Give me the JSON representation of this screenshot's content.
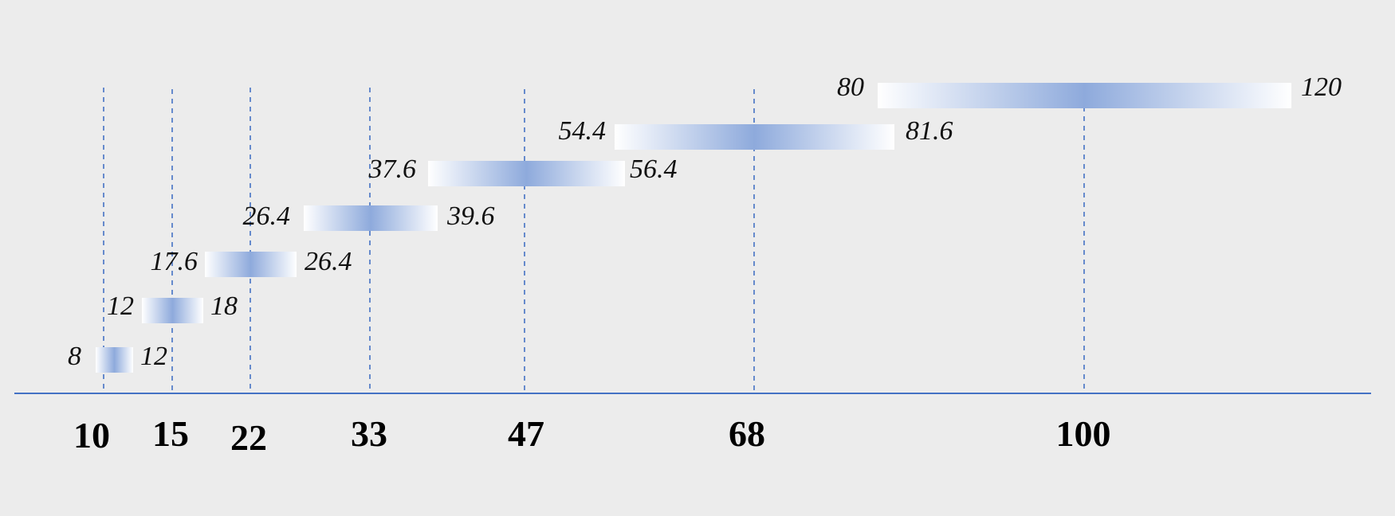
{
  "chart_data": {
    "type": "range-bar",
    "nominal_values": [
      "10",
      "15",
      "22",
      "33",
      "47",
      "68",
      "100"
    ],
    "ranges": [
      {
        "nominal": "10",
        "low": "8",
        "high": "12"
      },
      {
        "nominal": "15",
        "low": "12",
        "high": "18"
      },
      {
        "nominal": "22",
        "low": "17.6",
        "high": "26.4"
      },
      {
        "nominal": "33",
        "low": "26.4",
        "high": "39.6"
      },
      {
        "nominal": "47",
        "low": "37.6",
        "high": "56.4"
      },
      {
        "nominal": "68",
        "low": "54.4",
        "high": "81.6"
      },
      {
        "nominal": "100",
        "low": "80",
        "high": "120"
      }
    ],
    "bar_gradient": {
      "edge_color": "#ffffff",
      "center_color": "#8eaadc"
    },
    "line_color": "#4472c4",
    "background_color": "#ececec",
    "grid": "dashed vertical lines at nominal values"
  }
}
